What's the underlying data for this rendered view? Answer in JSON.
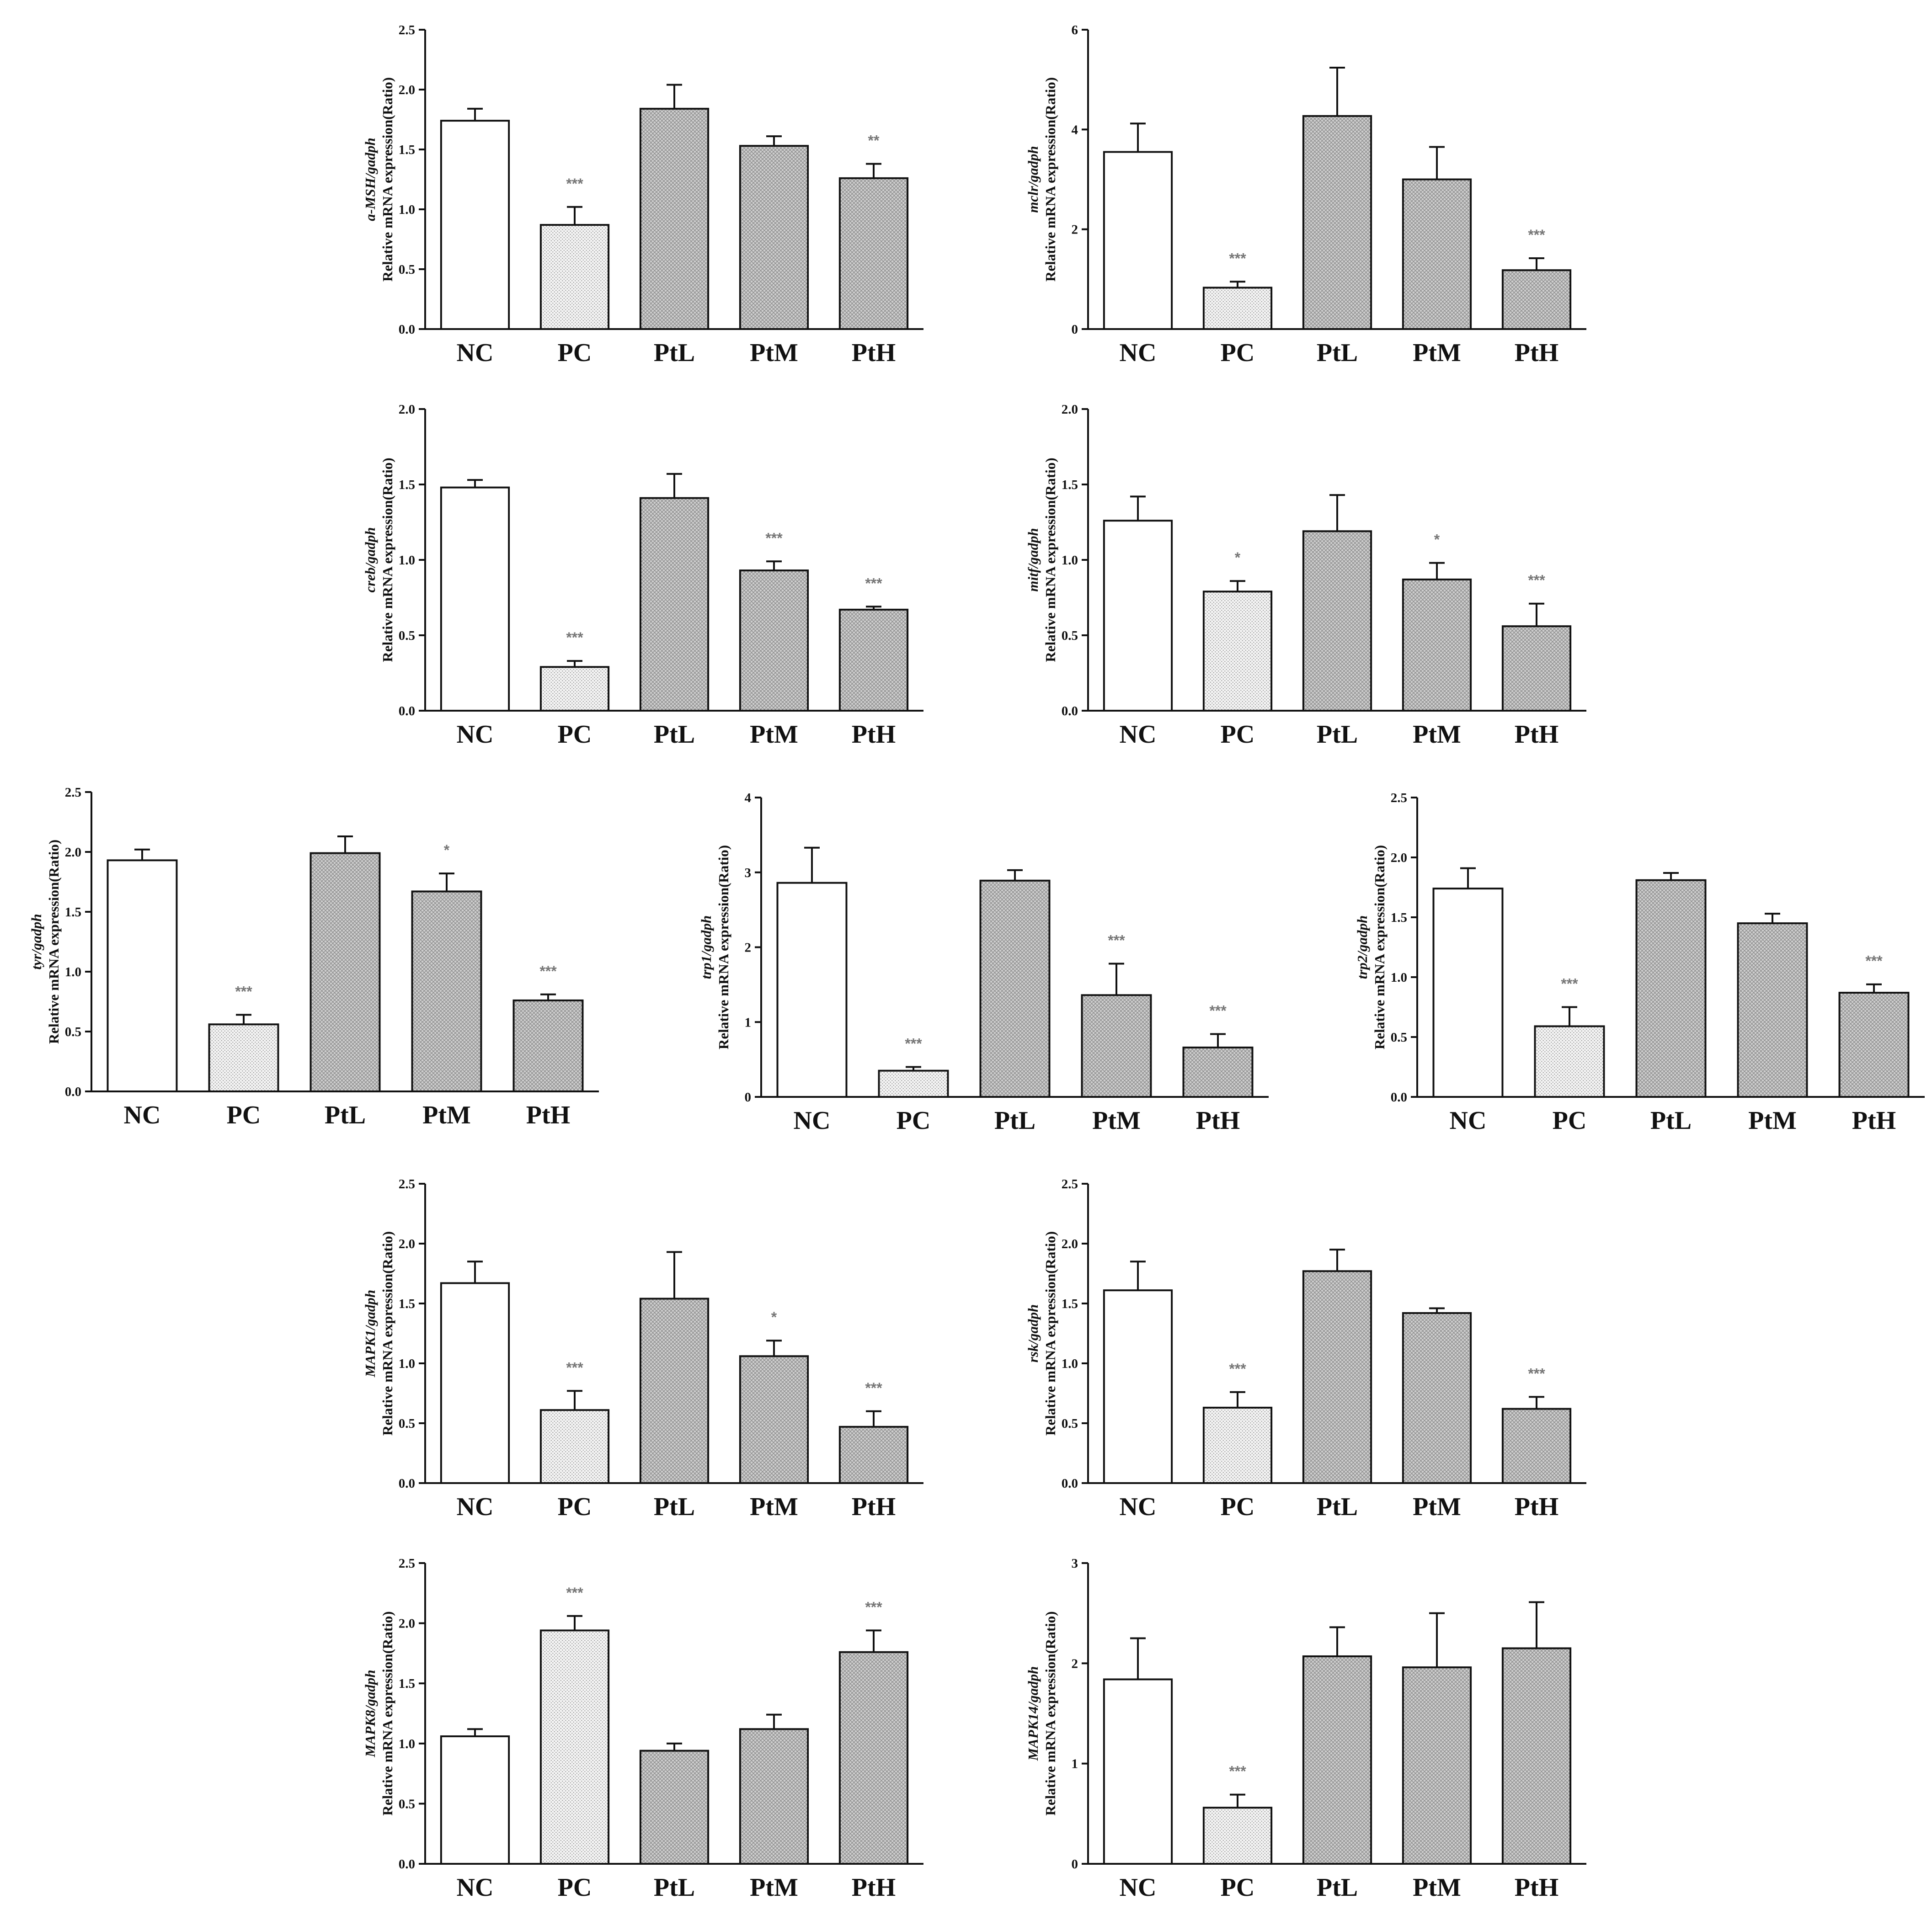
{
  "categories": [
    "NC",
    "PC",
    "PtL",
    "PtM",
    "PtH"
  ],
  "y_suffix": "Relative mRNA expression(Ratio)",
  "chart_data": [
    {
      "type": "bar",
      "gene": "a-MSH/gadph",
      "ylim": [
        0,
        2.5
      ],
      "ticks": [
        "0.0",
        "0.5",
        "1.0",
        "1.5",
        "2.0",
        "2.5"
      ],
      "values": [
        1.74,
        0.87,
        1.84,
        1.53,
        1.26
      ],
      "errors": [
        0.1,
        0.15,
        0.2,
        0.08,
        0.12
      ],
      "sig": [
        "",
        "***",
        "",
        "",
        "**"
      ]
    },
    {
      "type": "bar",
      "gene": "mclr/gadph",
      "ylim": [
        0,
        6
      ],
      "ticks": [
        "0",
        "2",
        "4",
        "6"
      ],
      "values": [
        3.55,
        0.83,
        4.27,
        3.0,
        1.18
      ],
      "errors": [
        0.57,
        0.12,
        0.97,
        0.65,
        0.24
      ],
      "sig": [
        "",
        "***",
        "",
        "",
        "***"
      ]
    },
    {
      "type": "bar",
      "gene": "creb/gadph",
      "ylim": [
        0,
        2.0
      ],
      "ticks": [
        "0.0",
        "0.5",
        "1.0",
        "1.5",
        "2.0"
      ],
      "values": [
        1.48,
        0.29,
        1.41,
        0.93,
        0.67
      ],
      "errors": [
        0.05,
        0.04,
        0.16,
        0.06,
        0.02
      ],
      "sig": [
        "",
        "***",
        "",
        "***",
        "***"
      ]
    },
    {
      "type": "bar",
      "gene": "mitf/gadph",
      "ylim": [
        0,
        2.0
      ],
      "ticks": [
        "0.0",
        "0.5",
        "1.0",
        "1.5",
        "2.0"
      ],
      "values": [
        1.26,
        0.79,
        1.19,
        0.87,
        0.56
      ],
      "errors": [
        0.16,
        0.07,
        0.24,
        0.11,
        0.15
      ],
      "sig": [
        "",
        "*",
        "",
        "*",
        "***"
      ]
    },
    {
      "type": "bar",
      "gene": "tyr/gadph",
      "ylim": [
        0,
        2.5
      ],
      "ticks": [
        "0.0",
        "0.5",
        "1.0",
        "1.5",
        "2.0",
        "2.5"
      ],
      "values": [
        1.93,
        0.56,
        1.99,
        1.67,
        0.76
      ],
      "errors": [
        0.09,
        0.08,
        0.14,
        0.15,
        0.05
      ],
      "sig": [
        "",
        "***",
        "",
        "*",
        "***"
      ]
    },
    {
      "type": "bar",
      "gene": "trp1/gadph",
      "ylim": [
        0,
        4
      ],
      "ticks": [
        "0",
        "1",
        "2",
        "3",
        "4"
      ],
      "values": [
        2.86,
        0.35,
        2.89,
        1.36,
        0.66
      ],
      "errors": [
        0.47,
        0.05,
        0.14,
        0.42,
        0.18
      ],
      "sig": [
        "",
        "***",
        "",
        "***",
        "***"
      ]
    },
    {
      "type": "bar",
      "gene": "trp2/gadph",
      "ylim": [
        0,
        2.5
      ],
      "ticks": [
        "0.0",
        "0.5",
        "1.0",
        "1.5",
        "2.0",
        "2.5"
      ],
      "values": [
        1.74,
        0.59,
        1.81,
        1.45,
        0.87
      ],
      "errors": [
        0.17,
        0.16,
        0.06,
        0.08,
        0.07
      ],
      "sig": [
        "",
        "***",
        "",
        "",
        "***"
      ]
    },
    {
      "type": "bar",
      "gene": "MAPK1/gadph",
      "ylim": [
        0,
        2.5
      ],
      "ticks": [
        "0.0",
        "0.5",
        "1.0",
        "1.5",
        "2.0",
        "2.5"
      ],
      "values": [
        1.67,
        0.61,
        1.54,
        1.06,
        0.47
      ],
      "errors": [
        0.18,
        0.16,
        0.39,
        0.13,
        0.13
      ],
      "sig": [
        "",
        "***",
        "",
        "*",
        "***"
      ]
    },
    {
      "type": "bar",
      "gene": "rsk/gadph",
      "ylim": [
        0,
        2.5
      ],
      "ticks": [
        "0.0",
        "0.5",
        "1.0",
        "1.5",
        "2.0",
        "2.5"
      ],
      "values": [
        1.61,
        0.63,
        1.77,
        1.42,
        0.62
      ],
      "errors": [
        0.24,
        0.13,
        0.18,
        0.04,
        0.1
      ],
      "sig": [
        "",
        "***",
        "",
        "",
        "***"
      ]
    },
    {
      "type": "bar",
      "gene": "MAPK8/gadph",
      "ylim": [
        0,
        2.5
      ],
      "ticks": [
        "0.0",
        "0.5",
        "1.0",
        "1.5",
        "2.0",
        "2.5"
      ],
      "values": [
        1.06,
        1.94,
        0.94,
        1.12,
        1.76
      ],
      "errors": [
        0.06,
        0.12,
        0.06,
        0.12,
        0.18
      ],
      "sig": [
        "",
        "***",
        "",
        "",
        "***"
      ]
    },
    {
      "type": "bar",
      "gene": "MAPK14/gadph",
      "ylim": [
        0,
        3
      ],
      "ticks": [
        "0",
        "1",
        "2",
        "3"
      ],
      "values": [
        1.84,
        0.56,
        2.07,
        1.96,
        2.15
      ],
      "errors": [
        0.41,
        0.13,
        0.29,
        0.54,
        0.46
      ],
      "sig": [
        "",
        "***",
        "",
        "",
        ""
      ]
    }
  ]
}
